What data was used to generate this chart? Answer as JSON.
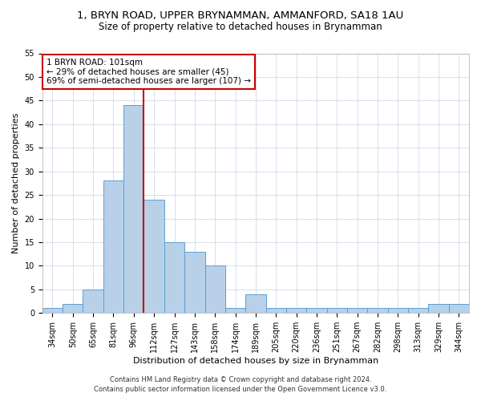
{
  "title1": "1, BRYN ROAD, UPPER BRYNAMMAN, AMMANFORD, SA18 1AU",
  "title2": "Size of property relative to detached houses in Brynamman",
  "xlabel": "Distribution of detached houses by size in Brynamman",
  "ylabel": "Number of detached properties",
  "categories": [
    "34sqm",
    "50sqm",
    "65sqm",
    "81sqm",
    "96sqm",
    "112sqm",
    "127sqm",
    "143sqm",
    "158sqm",
    "174sqm",
    "189sqm",
    "205sqm",
    "220sqm",
    "236sqm",
    "251sqm",
    "267sqm",
    "282sqm",
    "298sqm",
    "313sqm",
    "329sqm",
    "344sqm"
  ],
  "values": [
    1,
    2,
    5,
    28,
    44,
    24,
    15,
    13,
    10,
    1,
    4,
    1,
    1,
    1,
    1,
    1,
    1,
    1,
    1,
    2,
    2
  ],
  "bar_color": "#b8d0e8",
  "bar_edge_color": "#5a9fd4",
  "property_line_x": 4.5,
  "property_line_color": "#cc0000",
  "annotation_line1": "1 BRYN ROAD: 101sqm",
  "annotation_line2": "← 29% of detached houses are smaller (45)",
  "annotation_line3": "69% of semi-detached houses are larger (107) →",
  "annotation_box_color": "#ffffff",
  "annotation_box_edge_color": "#cc0000",
  "ylim": [
    0,
    55
  ],
  "yticks": [
    0,
    5,
    10,
    15,
    20,
    25,
    30,
    35,
    40,
    45,
    50,
    55
  ],
  "footer1": "Contains HM Land Registry data © Crown copyright and database right 2024.",
  "footer2": "Contains public sector information licensed under the Open Government Licence v3.0.",
  "background_color": "#ffffff",
  "grid_color": "#d0d8e8",
  "title_fontsize": 9.5,
  "subtitle_fontsize": 8.5,
  "axis_label_fontsize": 8,
  "tick_fontsize": 7,
  "annotation_fontsize": 7.5,
  "footer_fontsize": 6
}
